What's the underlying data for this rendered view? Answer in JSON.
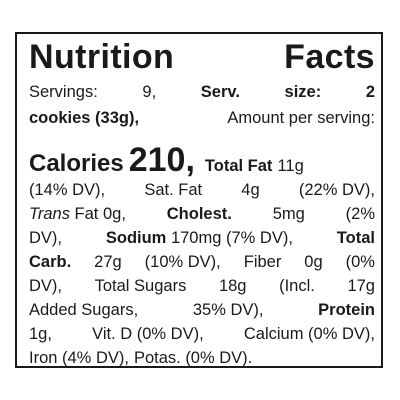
{
  "label": {
    "title_word1": "Nutrition",
    "title_word2": "Facts",
    "servings_prefix": "Servings:",
    "servings_value": "9,",
    "serv_size_label_1": "Serv.",
    "serv_size_label_2": "size:",
    "serv_size_value_num": "2",
    "serv_size_value_rest": "cookies (33g),",
    "amount_per_serving": "Amount per serving:",
    "calories_label": "Calories",
    "calories_value": "210,",
    "total_fat_label": "Total Fat",
    "total_fat_value": "11g",
    "total_fat_dv": "(14% DV),",
    "sat_fat_label": "Sat. Fat",
    "sat_fat_value": "4g",
    "sat_fat_dv": "(22% DV),",
    "trans_label": "Trans",
    "trans_fat_rest": "Fat 0g,",
    "cholest_label": "Cholest.",
    "cholest_value": "5mg",
    "cholest_dv_open": "(2%",
    "cholest_dv_close": "DV),",
    "sodium_label": "Sodium",
    "sodium_value": "170mg (7% DV),",
    "total_carb_label_1": "Total",
    "total_carb_label_2": "Carb.",
    "total_carb_value": "27g",
    "total_carb_dv": "(10% DV),",
    "fiber_label": "Fiber",
    "fiber_value": "0g",
    "fiber_dv_open": "(0%",
    "fiber_dv_close": "DV),",
    "total_sugars_label": "Total Sugars",
    "total_sugars_value": "18g",
    "incl_prefix": "(Incl.",
    "added_sugars_value": "17g",
    "added_sugars_label": "Added Sugars,",
    "added_sugars_dv": "35% DV),",
    "protein_label": "Protein",
    "protein_value": "1g,",
    "vitd": "Vit. D (0% DV),",
    "calcium": "Calcium (0% DV),",
    "iron": "Iron (4% DV),",
    "potas": "Potas. (0% DV)."
  }
}
